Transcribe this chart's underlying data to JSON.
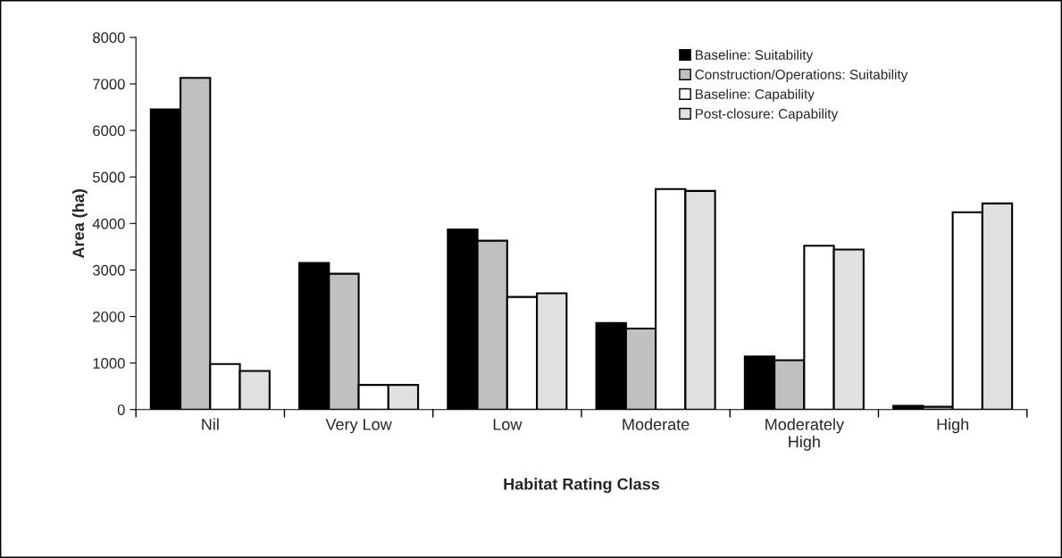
{
  "chart_data": {
    "type": "bar",
    "xlabel": "Habitat Rating Class",
    "ylabel": "Area (ha)",
    "categories": [
      "Nil",
      "Very Low",
      "Low",
      "Moderate",
      "Moderately\nHigh",
      "High"
    ],
    "series": [
      {
        "name": "Baseline: Suitability",
        "color": "#000000",
        "values": [
          6450,
          3150,
          3870,
          1860,
          1140,
          80
        ]
      },
      {
        "name": "Construction/Operations: Suitability",
        "color": "#c0c0c0",
        "values": [
          7130,
          2920,
          3630,
          1740,
          1060,
          60
        ]
      },
      {
        "name": "Baseline: Capability",
        "color": "#ffffff",
        "values": [
          980,
          530,
          2420,
          4740,
          3520,
          4240
        ]
      },
      {
        "name": "Post-closure: Capability",
        "color": "#e0e0e0",
        "values": [
          830,
          530,
          2500,
          4700,
          3440,
          4430
        ]
      }
    ],
    "ylim": [
      0,
      8000
    ],
    "yticks": [
      0,
      1000,
      2000,
      3000,
      4000,
      5000,
      6000,
      7000,
      8000
    ],
    "grid": false,
    "legend": "top right"
  }
}
